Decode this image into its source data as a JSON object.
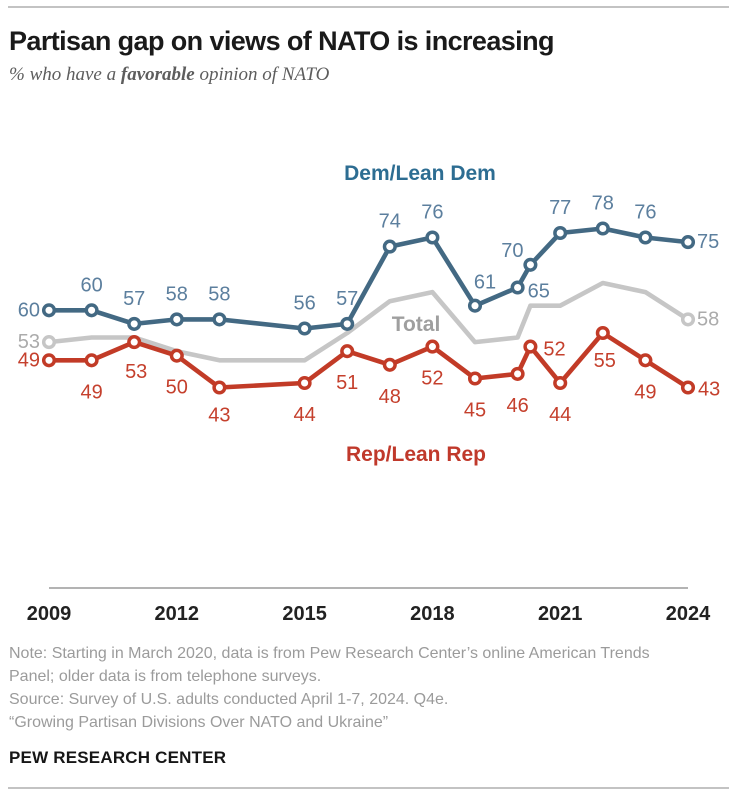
{
  "header": {
    "title": "Partisan gap on views of NATO is increasing",
    "subtitle": {
      "prefix": "% who have a ",
      "emphasis": "favorable",
      "suffix": " opinion of NATO"
    }
  },
  "chart_data": {
    "type": "line",
    "title": "Partisan gap on views of NATO is increasing",
    "subtitle": "% who have a favorable opinion of NATO",
    "x": [
      2009,
      2010,
      2011,
      2012,
      2013,
      2015,
      2016,
      2017,
      2018,
      2019,
      2020,
      2020.3,
      2021,
      2022,
      2023,
      2024
    ],
    "x_axis": {
      "range": [
        2009,
        2024
      ],
      "tick_years": [
        2009,
        2012,
        2015,
        2018,
        2021,
        2024
      ],
      "tick_labels": [
        "2009",
        "2012",
        "2015",
        "2018",
        "2021",
        "2024"
      ]
    },
    "grid": false,
    "legend_position": "inline-annotations",
    "series": [
      {
        "name": "Dem/Lean Dem",
        "color": "#436983",
        "label_color": "#5c7f9e",
        "name_color": "#2d6d92",
        "values": [
          60,
          60,
          57,
          58,
          58,
          56,
          57,
          74,
          76,
          61,
          65,
          70,
          77,
          78,
          76,
          75
        ],
        "point_labels": "all",
        "markers": "all"
      },
      {
        "name": "Total",
        "color": "#c6c6c6",
        "label_color": "#ababab",
        "name_color": "#9f9f9f",
        "values": [
          53,
          54,
          54,
          51,
          49,
          49,
          55,
          62,
          64,
          53,
          54,
          61,
          61,
          66,
          64,
          58
        ],
        "point_labels": "ends",
        "markers": "ends"
      },
      {
        "name": "Rep/Lean Rep",
        "color": "#c23b27",
        "label_color": "#c5402d",
        "name_color": "#c0392b",
        "values": [
          49,
          49,
          53,
          50,
          43,
          44,
          51,
          48,
          52,
          45,
          46,
          52,
          44,
          55,
          49,
          43
        ],
        "point_labels": "all",
        "markers": "all"
      }
    ]
  },
  "footer": {
    "note_lines": [
      "Note: Starting in March 2020, data is from Pew Research Center’s online American Trends",
      "Panel; older data is from telephone surveys.",
      "Source: Survey of U.S. adults conducted April 1-7, 2024. Q4e.",
      "“Growing Partisan Divisions Over NATO and Ukraine”"
    ],
    "brand": "PEW RESEARCH CENTER"
  }
}
